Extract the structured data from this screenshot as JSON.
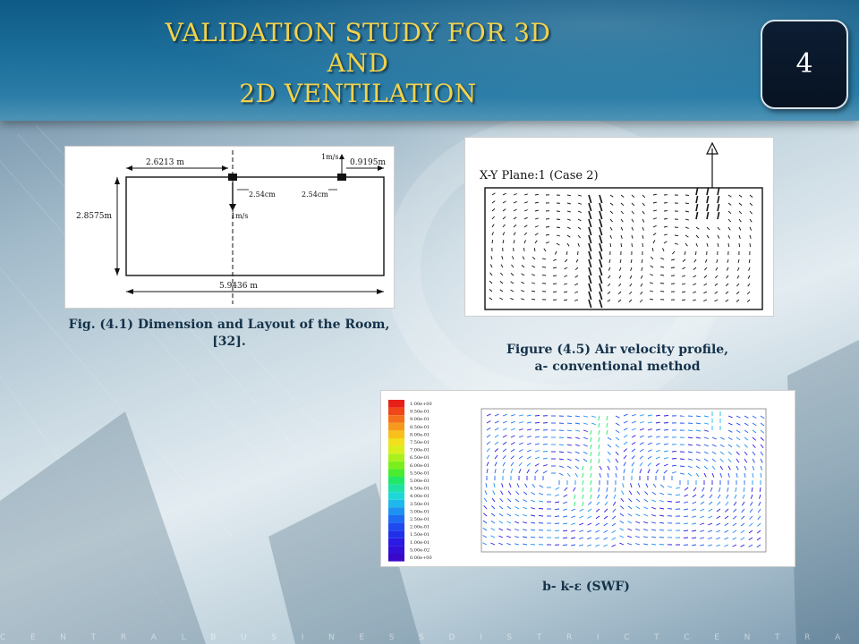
{
  "slide": {
    "title_line1": "VALIDATION STUDY FOR 3D AND",
    "title_line2": "2D VENTILATION",
    "page_number": "4",
    "footer_text": "C E N T R A L B U S I N E S S D I S T R I C T C E N T R A L B U S I N E S S D I S T R I C T C E N T R A"
  },
  "colors": {
    "title": "#f2d24a",
    "header_band": "#1b6e9a",
    "badge": "#0d1d33",
    "caption": "#15324a"
  },
  "figure1": {
    "caption": "Fig. (4.1) Dimension and Layout of the Room, [32].",
    "labels": {
      "inlet_width": "2.6213 m",
      "outlet_velocity": "1m/s",
      "outlet_offset": "0.9195m",
      "height": "2.8575m",
      "inlet_slot": "2.54cm",
      "outlet_slot": "2.54cm",
      "inlet_velocity": "1m/s",
      "length": "5.9436 m"
    }
  },
  "figure2": {
    "caption_line1": "Figure (4.5) Air velocity profile,",
    "caption_line2": "a- conventional method",
    "plot_label": "X-Y Plane:1 (Case 2)"
  },
  "figure3": {
    "caption": "b- k-ε (SWF)",
    "legend_values": [
      "1.00e+00",
      "9.50e-01",
      "9.00e-01",
      "8.50e-01",
      "8.00e-01",
      "7.50e-01",
      "7.00e-01",
      "6.50e-01",
      "6.00e-01",
      "5.50e-01",
      "5.00e-01",
      "4.50e-01",
      "4.00e-01",
      "3.50e-01",
      "3.00e-01",
      "2.50e-01",
      "2.00e-01",
      "1.50e-01",
      "1.00e-01",
      "5.00e-02",
      "0.00e+00"
    ],
    "legend_colors": [
      "#e8201a",
      "#f0461a",
      "#f5701c",
      "#f79a1c",
      "#f9c01c",
      "#f2e01c",
      "#d8ef1c",
      "#aaf01c",
      "#7aef1c",
      "#48ec30",
      "#22e868",
      "#1ee2a4",
      "#1ed8d8",
      "#1eb8ec",
      "#1e92f2",
      "#1e6cf2",
      "#1e4af0",
      "#2030ea",
      "#2a1ae4",
      "#3210d8",
      "#3a08c8"
    ]
  }
}
